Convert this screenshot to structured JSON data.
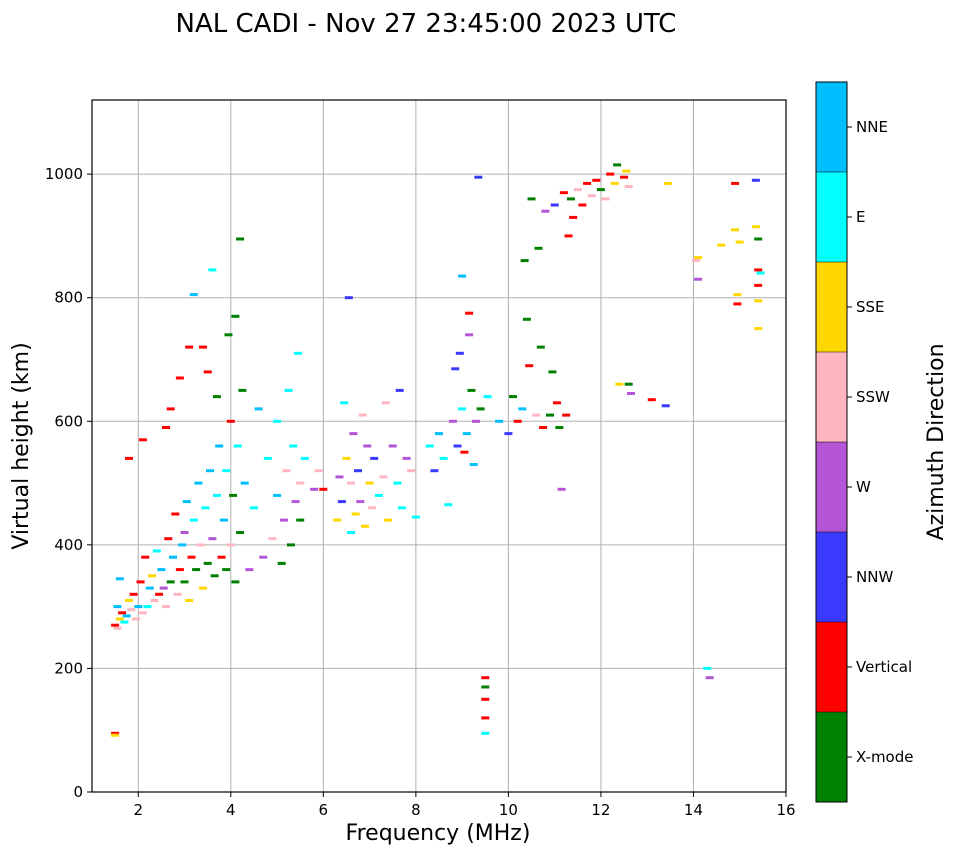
{
  "chart_data": {
    "type": "scatter",
    "title": "NAL CADI - Nov 27 23:45:00 2023 UTC",
    "xlabel": "Frequency (MHz)",
    "ylabel": "Virtual height (km)",
    "xlim": [
      1,
      16
    ],
    "ylim": [
      0,
      1120
    ],
    "xticks": [
      2,
      4,
      6,
      8,
      10,
      12,
      14,
      16
    ],
    "yticks": [
      0,
      200,
      400,
      600,
      800,
      1000
    ],
    "grid": true,
    "colorbar": {
      "label": "Azimuth Direction",
      "categories": [
        {
          "name": "X-mode",
          "color": "#008000"
        },
        {
          "name": "Vertical",
          "color": "#ff0000"
        },
        {
          "name": "NNW",
          "color": "#3a3aff"
        },
        {
          "name": "W",
          "color": "#b455d6"
        },
        {
          "name": "SSW",
          "color": "#ffb6c1"
        },
        {
          "name": "SSE",
          "color": "#ffd700"
        },
        {
          "name": "E",
          "color": "#00ffff"
        },
        {
          "name": "NNE",
          "color": "#00bfff"
        }
      ]
    },
    "points": [
      [
        1.5,
        95,
        "Vertical"
      ],
      [
        1.5,
        92,
        "SSE"
      ],
      [
        1.5,
        270,
        "Vertical"
      ],
      [
        1.55,
        265,
        "SSW"
      ],
      [
        1.6,
        280,
        "SSE"
      ],
      [
        1.55,
        300,
        "NNE"
      ],
      [
        1.6,
        345,
        "NNE"
      ],
      [
        1.65,
        290,
        "Vertical"
      ],
      [
        1.7,
        275,
        "E"
      ],
      [
        1.75,
        285,
        "NNE"
      ],
      [
        1.8,
        310,
        "SSE"
      ],
      [
        1.8,
        540,
        "Vertical"
      ],
      [
        1.85,
        295,
        "SSW"
      ],
      [
        1.9,
        320,
        "Vertical"
      ],
      [
        1.95,
        280,
        "SSW"
      ],
      [
        2.0,
        300,
        "NNE"
      ],
      [
        2.05,
        340,
        "Vertical"
      ],
      [
        2.1,
        290,
        "SSW"
      ],
      [
        2.1,
        570,
        "Vertical"
      ],
      [
        2.15,
        380,
        "Vertical"
      ],
      [
        2.2,
        300,
        "E"
      ],
      [
        2.25,
        330,
        "NNE"
      ],
      [
        2.3,
        350,
        "SSE"
      ],
      [
        2.35,
        310,
        "SSW"
      ],
      [
        2.4,
        390,
        "E"
      ],
      [
        2.45,
        320,
        "Vertical"
      ],
      [
        2.5,
        360,
        "NNE"
      ],
      [
        2.55,
        330,
        "W"
      ],
      [
        2.6,
        300,
        "SSW"
      ],
      [
        2.6,
        590,
        "Vertical"
      ],
      [
        2.65,
        410,
        "Vertical"
      ],
      [
        2.7,
        340,
        "X-mode"
      ],
      [
        2.7,
        620,
        "Vertical"
      ],
      [
        2.75,
        380,
        "NNE"
      ],
      [
        2.8,
        450,
        "Vertical"
      ],
      [
        2.85,
        320,
        "SSW"
      ],
      [
        2.9,
        360,
        "Vertical"
      ],
      [
        2.9,
        670,
        "Vertical"
      ],
      [
        2.95,
        400,
        "NNE"
      ],
      [
        3.0,
        340,
        "X-mode"
      ],
      [
        3.0,
        420,
        "W"
      ],
      [
        3.05,
        470,
        "NNE"
      ],
      [
        3.1,
        310,
        "SSE"
      ],
      [
        3.1,
        720,
        "Vertical"
      ],
      [
        3.15,
        380,
        "Vertical"
      ],
      [
        3.2,
        440,
        "E"
      ],
      [
        3.2,
        805,
        "NNE"
      ],
      [
        3.25,
        360,
        "X-mode"
      ],
      [
        3.3,
        500,
        "NNE"
      ],
      [
        3.35,
        400,
        "SSW"
      ],
      [
        3.4,
        330,
        "SSE"
      ],
      [
        3.4,
        720,
        "Vertical"
      ],
      [
        3.45,
        460,
        "E"
      ],
      [
        3.5,
        370,
        "X-mode"
      ],
      [
        3.5,
        680,
        "Vertical"
      ],
      [
        3.55,
        520,
        "NNE"
      ],
      [
        3.6,
        410,
        "W"
      ],
      [
        3.6,
        845,
        "E"
      ],
      [
        3.65,
        350,
        "X-mode"
      ],
      [
        3.7,
        480,
        "E"
      ],
      [
        3.7,
        640,
        "X-mode"
      ],
      [
        3.75,
        560,
        "NNE"
      ],
      [
        3.8,
        380,
        "Vertical"
      ],
      [
        3.85,
        440,
        "NNE"
      ],
      [
        3.9,
        360,
        "X-mode"
      ],
      [
        3.9,
        520,
        "E"
      ],
      [
        3.95,
        740,
        "X-mode"
      ],
      [
        4.0,
        400,
        "SSW"
      ],
      [
        4.0,
        600,
        "Vertical"
      ],
      [
        4.05,
        480,
        "X-mode"
      ],
      [
        4.1,
        340,
        "X-mode"
      ],
      [
        4.1,
        770,
        "X-mode"
      ],
      [
        4.15,
        560,
        "E"
      ],
      [
        4.2,
        420,
        "X-mode"
      ],
      [
        4.2,
        895,
        "X-mode"
      ],
      [
        4.25,
        650,
        "X-mode"
      ],
      [
        4.3,
        500,
        "NNE"
      ],
      [
        4.4,
        360,
        "W"
      ],
      [
        4.5,
        460,
        "E"
      ],
      [
        4.6,
        620,
        "NNE"
      ],
      [
        4.7,
        380,
        "W"
      ],
      [
        4.8,
        540,
        "E"
      ],
      [
        4.9,
        410,
        "SSW"
      ],
      [
        5.0,
        480,
        "NNE"
      ],
      [
        5.0,
        600,
        "E"
      ],
      [
        5.1,
        370,
        "X-mode"
      ],
      [
        5.15,
        440,
        "W"
      ],
      [
        5.2,
        520,
        "SSW"
      ],
      [
        5.25,
        650,
        "E"
      ],
      [
        5.3,
        400,
        "X-mode"
      ],
      [
        5.35,
        560,
        "E"
      ],
      [
        5.4,
        470,
        "W"
      ],
      [
        5.45,
        710,
        "E"
      ],
      [
        5.5,
        500,
        "SSW"
      ],
      [
        5.5,
        440,
        "X-mode"
      ],
      [
        5.6,
        540,
        "E"
      ],
      [
        5.8,
        490,
        "W"
      ],
      [
        5.9,
        520,
        "SSW"
      ],
      [
        6.0,
        490,
        "Vertical"
      ],
      [
        6.3,
        440,
        "SSE"
      ],
      [
        6.35,
        510,
        "W"
      ],
      [
        6.4,
        470,
        "NNW"
      ],
      [
        6.45,
        630,
        "E"
      ],
      [
        6.5,
        540,
        "SSE"
      ],
      [
        6.55,
        800,
        "NNW"
      ],
      [
        6.6,
        420,
        "E"
      ],
      [
        6.6,
        500,
        "SSW"
      ],
      [
        6.65,
        580,
        "W"
      ],
      [
        6.7,
        450,
        "SSE"
      ],
      [
        6.75,
        520,
        "NNW"
      ],
      [
        6.8,
        470,
        "W"
      ],
      [
        6.85,
        610,
        "SSW"
      ],
      [
        6.9,
        430,
        "SSE"
      ],
      [
        6.95,
        560,
        "W"
      ],
      [
        7.0,
        500,
        "SSE"
      ],
      [
        7.05,
        460,
        "SSW"
      ],
      [
        7.1,
        540,
        "NNW"
      ],
      [
        7.2,
        480,
        "E"
      ],
      [
        7.3,
        510,
        "SSW"
      ],
      [
        7.35,
        630,
        "SSW"
      ],
      [
        7.4,
        440,
        "SSE"
      ],
      [
        7.5,
        560,
        "W"
      ],
      [
        7.6,
        500,
        "E"
      ],
      [
        7.65,
        650,
        "NNW"
      ],
      [
        7.7,
        460,
        "E"
      ],
      [
        7.8,
        540,
        "W"
      ],
      [
        7.9,
        520,
        "SSW"
      ],
      [
        8.0,
        445,
        "E"
      ],
      [
        8.3,
        560,
        "E"
      ],
      [
        8.4,
        520,
        "NNW"
      ],
      [
        8.5,
        580,
        "NNE"
      ],
      [
        8.6,
        540,
        "E"
      ],
      [
        8.7,
        465,
        "E"
      ],
      [
        8.8,
        600,
        "W"
      ],
      [
        8.85,
        685,
        "NNW"
      ],
      [
        8.9,
        560,
        "NNW"
      ],
      [
        8.95,
        710,
        "NNW"
      ],
      [
        9.0,
        835,
        "NNE"
      ],
      [
        9.0,
        620,
        "E"
      ],
      [
        9.05,
        550,
        "Vertical"
      ],
      [
        9.1,
        580,
        "NNE"
      ],
      [
        9.15,
        740,
        "W"
      ],
      [
        9.15,
        775,
        "Vertical"
      ],
      [
        9.2,
        650,
        "X-mode"
      ],
      [
        9.25,
        530,
        "NNE"
      ],
      [
        9.3,
        600,
        "W"
      ],
      [
        9.35,
        995,
        "NNW"
      ],
      [
        9.4,
        620,
        "X-mode"
      ],
      [
        9.5,
        185,
        "Vertical"
      ],
      [
        9.5,
        170,
        "X-mode"
      ],
      [
        9.5,
        150,
        "Vertical"
      ],
      [
        9.5,
        120,
        "Vertical"
      ],
      [
        9.5,
        95,
        "E"
      ],
      [
        9.55,
        640,
        "E"
      ],
      [
        9.8,
        600,
        "NNE"
      ],
      [
        10.0,
        580,
        "NNW"
      ],
      [
        10.1,
        640,
        "X-mode"
      ],
      [
        10.2,
        600,
        "Vertical"
      ],
      [
        10.3,
        620,
        "NNE"
      ],
      [
        10.35,
        860,
        "X-mode"
      ],
      [
        10.4,
        765,
        "X-mode"
      ],
      [
        10.45,
        690,
        "Vertical"
      ],
      [
        10.5,
        960,
        "X-mode"
      ],
      [
        10.6,
        610,
        "SSW"
      ],
      [
        10.65,
        880,
        "X-mode"
      ],
      [
        10.7,
        720,
        "X-mode"
      ],
      [
        10.75,
        590,
        "Vertical"
      ],
      [
        10.8,
        940,
        "W"
      ],
      [
        10.9,
        610,
        "X-mode"
      ],
      [
        10.95,
        680,
        "X-mode"
      ],
      [
        11.0,
        950,
        "NNW"
      ],
      [
        11.05,
        630,
        "Vertical"
      ],
      [
        11.1,
        590,
        "X-mode"
      ],
      [
        11.15,
        490,
        "W"
      ],
      [
        11.2,
        970,
        "Vertical"
      ],
      [
        11.25,
        610,
        "Vertical"
      ],
      [
        11.3,
        900,
        "Vertical"
      ],
      [
        11.35,
        960,
        "X-mode"
      ],
      [
        11.4,
        930,
        "Vertical"
      ],
      [
        11.5,
        975,
        "SSW"
      ],
      [
        11.6,
        950,
        "Vertical"
      ],
      [
        11.7,
        985,
        "Vertical"
      ],
      [
        11.8,
        965,
        "SSW"
      ],
      [
        11.9,
        990,
        "Vertical"
      ],
      [
        12.0,
        975,
        "X-mode"
      ],
      [
        12.1,
        960,
        "SSW"
      ],
      [
        12.2,
        1000,
        "Vertical"
      ],
      [
        12.3,
        985,
        "SSE"
      ],
      [
        12.35,
        1015,
        "X-mode"
      ],
      [
        12.4,
        660,
        "SSE"
      ],
      [
        12.5,
        995,
        "Vertical"
      ],
      [
        12.55,
        1005,
        "SSE"
      ],
      [
        12.6,
        980,
        "SSW"
      ],
      [
        12.6,
        660,
        "X-mode"
      ],
      [
        12.65,
        645,
        "W"
      ],
      [
        13.1,
        635,
        "Vertical"
      ],
      [
        13.4,
        625,
        "NNW"
      ],
      [
        13.45,
        985,
        "SSE"
      ],
      [
        14.1,
        865,
        "SSE"
      ],
      [
        14.1,
        830,
        "W"
      ],
      [
        14.3,
        200,
        "E"
      ],
      [
        14.35,
        185,
        "W"
      ],
      [
        14.6,
        885,
        "SSE"
      ],
      [
        14.9,
        910,
        "SSE"
      ],
      [
        14.9,
        985,
        "Vertical"
      ],
      [
        14.95,
        790,
        "Vertical"
      ],
      [
        15.0,
        890,
        "SSE"
      ],
      [
        15.35,
        990,
        "NNW"
      ],
      [
        15.35,
        915,
        "SSE"
      ],
      [
        15.4,
        895,
        "X-mode"
      ],
      [
        15.4,
        845,
        "Vertical"
      ],
      [
        15.4,
        820,
        "Vertical"
      ],
      [
        15.4,
        795,
        "SSE"
      ],
      [
        15.4,
        750,
        "SSE"
      ],
      [
        15.45,
        840,
        "E"
      ],
      [
        14.05,
        860,
        "SSW"
      ],
      [
        14.95,
        805,
        "SSE"
      ]
    ]
  }
}
